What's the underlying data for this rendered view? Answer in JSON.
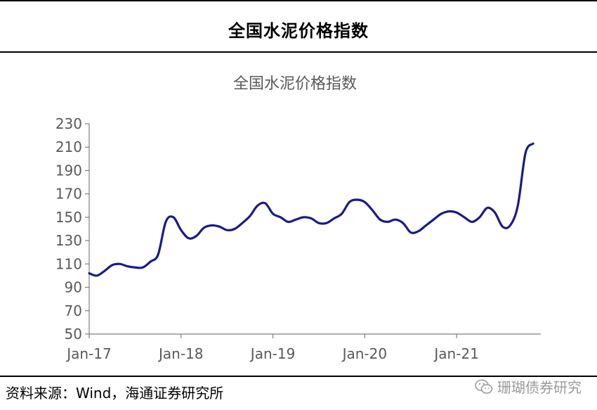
{
  "header": {
    "title": "全国水泥价格指数"
  },
  "footer": {
    "source": "资料来源：Wind，海通证券研究所",
    "watermark": "珊瑚债券研究"
  },
  "colors": {
    "line": "#1a1a8c",
    "axis": "#7f7f7f",
    "text": "#595959"
  },
  "chart_data": {
    "type": "line",
    "title": "全国水泥价格指数",
    "xlabel": "",
    "ylabel": "",
    "ylim": [
      50,
      230
    ],
    "yticks": [
      50,
      70,
      90,
      110,
      130,
      150,
      170,
      190,
      210,
      230
    ],
    "xlim": [
      "2017-01",
      "2021-12"
    ],
    "xticks": [
      "2017-01",
      "2018-01",
      "2019-01",
      "2020-01",
      "2021-01"
    ],
    "xtick_labels": [
      "Jan-17",
      "Jan-18",
      "Jan-19",
      "Jan-20",
      "Jan-21"
    ],
    "grid": false,
    "legend": "none",
    "series": [
      {
        "x": [
          "2017-01",
          "2017-02",
          "2017-03",
          "2017-04",
          "2017-05",
          "2017-06",
          "2017-07",
          "2017-08",
          "2017-09",
          "2017-10",
          "2017-11",
          "2017-12",
          "2018-01",
          "2018-02",
          "2018-03",
          "2018-04",
          "2018-05",
          "2018-06",
          "2018-07",
          "2018-08",
          "2018-09",
          "2018-10",
          "2018-11",
          "2018-12",
          "2019-01",
          "2019-02",
          "2019-03",
          "2019-04",
          "2019-05",
          "2019-06",
          "2019-07",
          "2019-08",
          "2019-09",
          "2019-10",
          "2019-11",
          "2019-12",
          "2020-01",
          "2020-02",
          "2020-03",
          "2020-04",
          "2020-05",
          "2020-06",
          "2020-07",
          "2020-08",
          "2020-09",
          "2020-10",
          "2020-11",
          "2020-12",
          "2021-01",
          "2021-02",
          "2021-03",
          "2021-04",
          "2021-05",
          "2021-06",
          "2021-07",
          "2021-08",
          "2021-09",
          "2021-10",
          "2021-11"
        ],
        "values": [
          102,
          100,
          104,
          109,
          110,
          108,
          107,
          107,
          112,
          118,
          146,
          150,
          139,
          132,
          134,
          141,
          143,
          142,
          139,
          140,
          145,
          151,
          160,
          162,
          153,
          150,
          146,
          148,
          150,
          149,
          145,
          145,
          149,
          153,
          163,
          165,
          163,
          156,
          148,
          146,
          148,
          145,
          137,
          138,
          143,
          148,
          153,
          155,
          154,
          150,
          146,
          150,
          158,
          154,
          142,
          143,
          160,
          205,
          213
        ]
      }
    ]
  }
}
